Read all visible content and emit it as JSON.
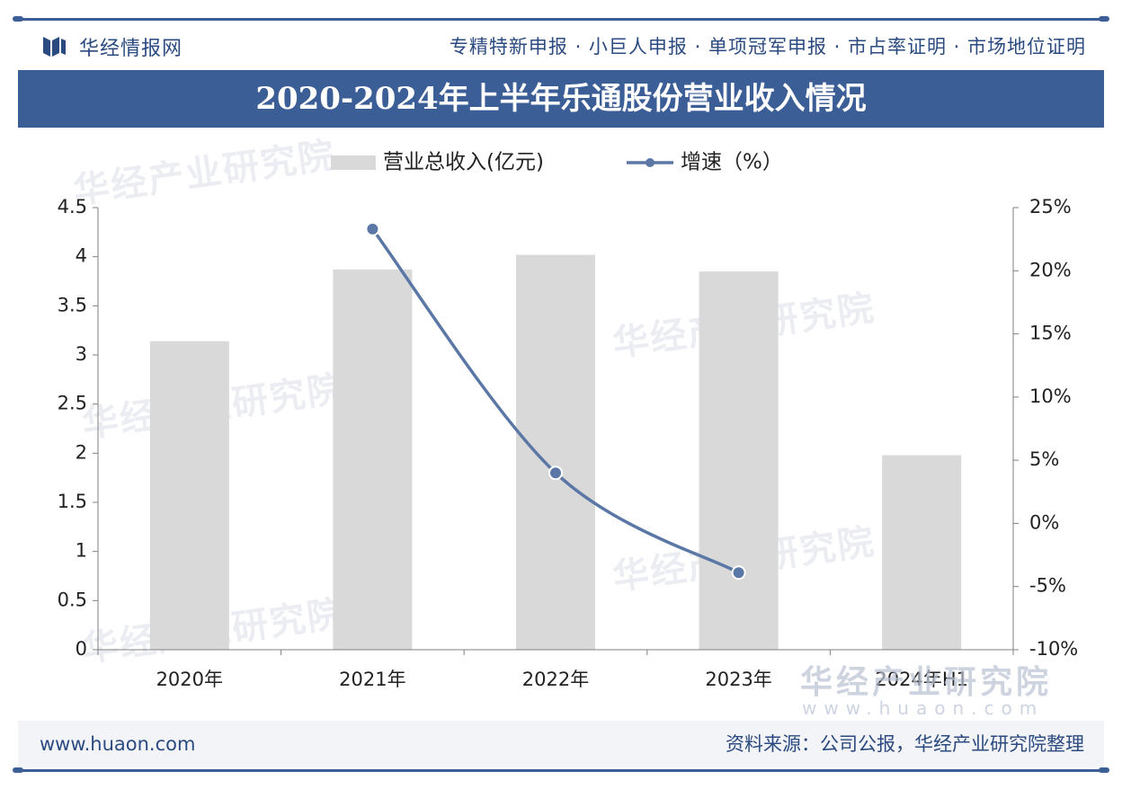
{
  "header": {
    "brand_icon": "huajing-logo-icon",
    "brand_name": "华经情报网",
    "slogan": "专精特新申报 · 小巨人申报 · 单项冠军申报 · 市占率证明 · 市场地位证明"
  },
  "watermark": {
    "text": "华经产业研究院",
    "url": "www.huaon.com"
  },
  "footer": {
    "website": "www.huaon.com",
    "source": "资料来源：公司公报，华经产业研究院整理"
  },
  "colors": {
    "brand": "#3c5e97",
    "bar": "#d9d9d9",
    "line": "#5a77a6"
  },
  "chart_data": {
    "type": "bar",
    "title": "2020-2024年上半年乐通股份营业收入情况",
    "categories": [
      "2020年",
      "2021年",
      "2022年",
      "2023年",
      "2024年H1"
    ],
    "series": [
      {
        "name": "营业总收入(亿元)",
        "type": "bar",
        "axis": "left",
        "values": [
          3.14,
          3.87,
          4.02,
          3.85,
          1.98
        ]
      },
      {
        "name": "增速（%）",
        "type": "line",
        "axis": "right",
        "values": [
          null,
          23.3,
          4.0,
          -3.9,
          null
        ]
      }
    ],
    "y_left": {
      "min": 0,
      "max": 4.5,
      "ticks": [
        "0",
        "0.5",
        "1",
        "1.5",
        "2",
        "2.5",
        "3",
        "3.5",
        "4",
        "4.5"
      ]
    },
    "y_right": {
      "min": -10,
      "max": 25,
      "ticks": [
        "-10%",
        "-5%",
        "0%",
        "5%",
        "10%",
        "15%",
        "20%",
        "25%"
      ]
    },
    "legend_position": "top-center",
    "grid": false
  }
}
